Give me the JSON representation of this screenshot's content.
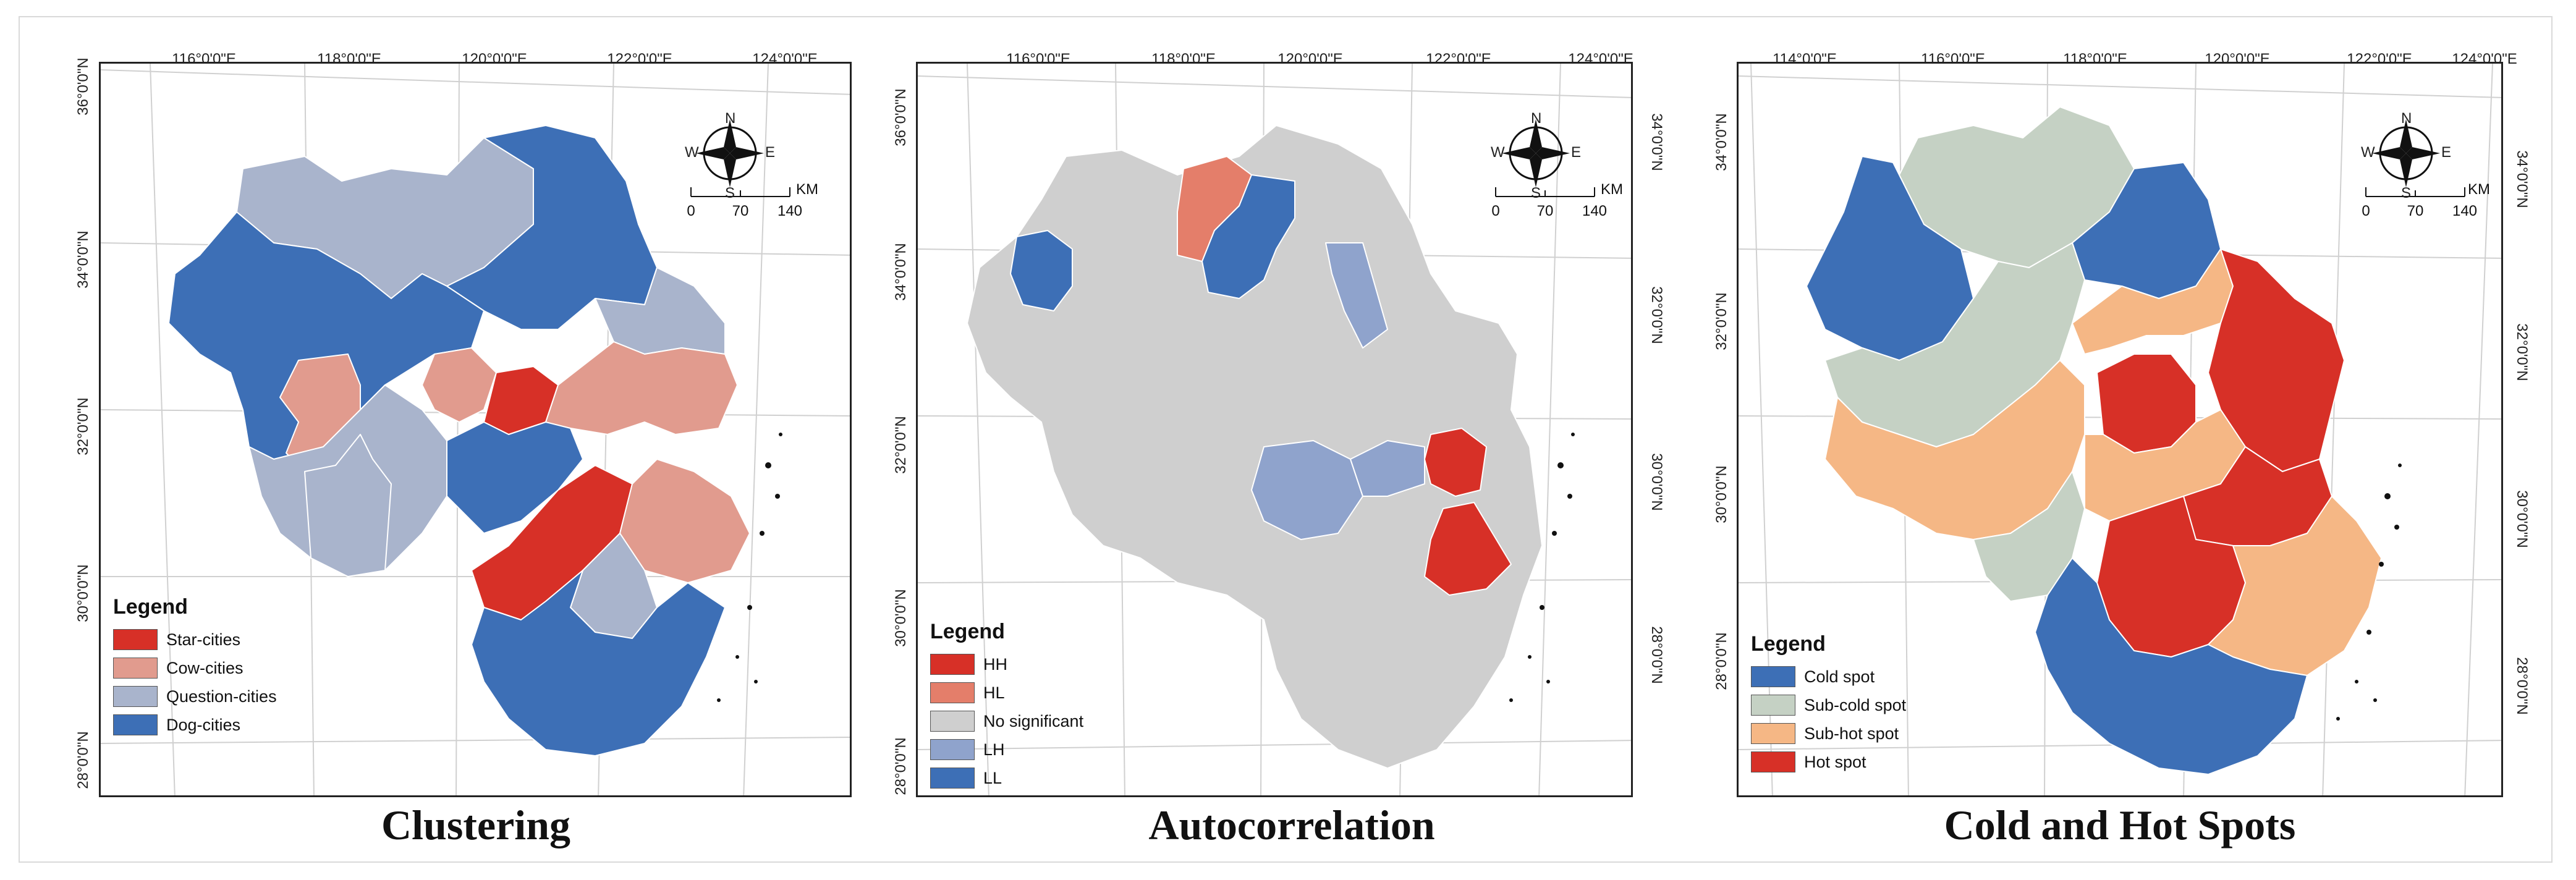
{
  "panels": [
    {
      "title": "Clustering",
      "top_ticks": [
        "116°0'0\"E",
        "118°0'0\"E",
        "120°0'0\"E",
        "122°0'0\"E",
        "124°0'0\"E"
      ],
      "left_ticks": [
        "36°0'0\"N",
        "34°0'0\"N",
        "32°0'0\"N",
        "30°0'0\"N",
        "28°0'0\"N"
      ],
      "right_ticks": [],
      "legend": {
        "title": "Legend",
        "items": [
          {
            "label": "Star-cities",
            "color": "#d73027"
          },
          {
            "label": "Cow-cities",
            "color": "#e19b8e"
          },
          {
            "label": "Question-cities",
            "color": "#a9b4cc"
          },
          {
            "label": "Dog-cities",
            "color": "#3d6fb6"
          }
        ]
      },
      "scale": {
        "labels": [
          "0",
          "70",
          "140"
        ],
        "unit": "KM"
      },
      "compass": [
        "N",
        "S",
        "W",
        "E"
      ]
    },
    {
      "title": "Autocorrelation",
      "top_ticks": [
        "116°0'0\"E",
        "118°0'0\"E",
        "120°0'0\"E",
        "122°0'0\"E",
        "124°0'0\"E"
      ],
      "left_ticks": [
        "36°0'0\"N",
        "34°0'0\"N",
        "32°0'0\"N",
        "30°0'0\"N",
        "28°0'0\"N"
      ],
      "right_ticks": [
        "34°0'0\"N",
        "32°0'0\"N",
        "30°0'0\"N",
        "28°0'0\"N"
      ],
      "legend": {
        "title": "Legend",
        "items": [
          {
            "label": "HH",
            "color": "#d73027"
          },
          {
            "label": "HL",
            "color": "#e47e6a"
          },
          {
            "label": "No significant",
            "color": "#cfcfcf"
          },
          {
            "label": "LH",
            "color": "#8fa3cc"
          },
          {
            "label": "LL",
            "color": "#3d6fb6"
          }
        ]
      },
      "scale": {
        "labels": [
          "0",
          "70",
          "140"
        ],
        "unit": "KM"
      },
      "compass": [
        "N",
        "S",
        "W",
        "E"
      ]
    },
    {
      "title": "Cold and Hot Spots",
      "top_ticks": [
        "114°0'0\"E",
        "116°0'0\"E",
        "118°0'0\"E",
        "120°0'0\"E",
        "122°0'0\"E",
        "124°0'0\"E"
      ],
      "left_ticks": [
        "34°0'0\"N",
        "32°0'0\"N",
        "30°0'0\"N",
        "28°0'0\"N"
      ],
      "right_ticks": [
        "34°0'0\"N",
        "32°0'0\"N",
        "30°0'0\"N",
        "28°0'0\"N"
      ],
      "legend": {
        "title": "Legend",
        "items": [
          {
            "label": "Cold spot",
            "color": "#3d6fb6"
          },
          {
            "label": "Sub-cold spot",
            "color": "#c5d1c4"
          },
          {
            "label": "Sub-hot spot",
            "color": "#f5b785"
          },
          {
            "label": "Hot spot",
            "color": "#d73027"
          }
        ]
      },
      "scale": {
        "labels": [
          "0",
          "70",
          "140"
        ],
        "unit": "KM"
      },
      "compass": [
        "N",
        "S",
        "W",
        "E"
      ]
    }
  ]
}
